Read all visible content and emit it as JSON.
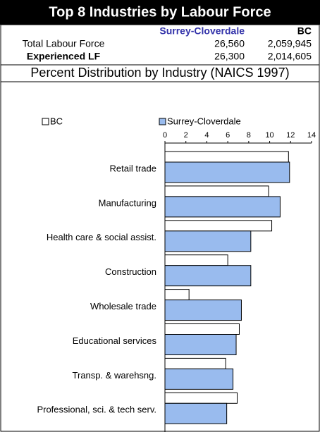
{
  "header": {
    "title": "Top 8 Industries by Labour Force"
  },
  "table": {
    "columns": [
      "Surrey-Cloverdale",
      "BC"
    ],
    "rows": [
      [
        "Total Labour Force",
        "26,560",
        "2,059,945"
      ],
      [
        "Experienced LF",
        "26,300",
        "2,014,605"
      ]
    ]
  },
  "chart_data": {
    "type": "bar",
    "orientation": "horizontal",
    "title": "Percent Distribution by Industry (NAICS 1997)",
    "categories": [
      "Retail trade",
      "Manufacturing",
      "Health care & social assist.",
      "Construction",
      "Wholesale trade",
      "Educational services",
      "Transp. & warehsng.",
      "Professional, sci. & tech serv."
    ],
    "series": [
      {
        "name": "BC",
        "color": "#ffffff",
        "values": [
          11.8,
          9.9,
          10.2,
          6.0,
          2.3,
          7.1,
          5.8,
          6.9
        ]
      },
      {
        "name": "Surrey-Cloverdale",
        "color": "#99bbee",
        "values": [
          11.9,
          11.0,
          8.2,
          8.2,
          7.3,
          6.8,
          6.5,
          5.9
        ]
      }
    ],
    "xlim": [
      0,
      14
    ],
    "xticks": [
      0,
      2,
      4,
      6,
      8,
      10,
      12,
      14
    ]
  }
}
